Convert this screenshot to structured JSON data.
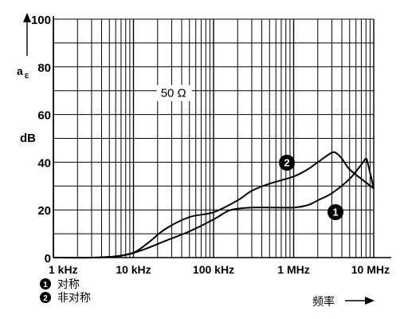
{
  "chart_data": {
    "type": "line",
    "title": "",
    "xscale": "log",
    "xlim": [
      1000,
      10000000
    ],
    "ylim": [
      0,
      100
    ],
    "grid": true,
    "ylabel_symbol": "a",
    "ylabel_sub": "E",
    "y_unit": "dB",
    "xlabel": "频率",
    "x_ticks": [
      {
        "value": 1000,
        "label": "1 kHz"
      },
      {
        "value": 10000,
        "label": "10 kHz"
      },
      {
        "value": 100000,
        "label": "100 kHz"
      },
      {
        "value": 1000000,
        "label": "1 MHz"
      },
      {
        "value": 10000000,
        "label": "10 MHz"
      }
    ],
    "y_ticks": [
      {
        "value": 0,
        "label": "0"
      },
      {
        "value": 20,
        "label": "20"
      },
      {
        "value": 40,
        "label": "40"
      },
      {
        "value": 60,
        "label": "60"
      },
      {
        "value": 80,
        "label": "80"
      },
      {
        "value": 100,
        "label": "100"
      }
    ],
    "annotation": "50 Ω",
    "legend_position": "bottom-left",
    "series": [
      {
        "name": "对称",
        "marker": "1",
        "x": [
          1000,
          3000,
          6000,
          10000,
          15000,
          25000,
          50000,
          100000,
          150000,
          200000,
          300000,
          500000,
          1000000,
          1500000,
          2000000,
          3000000,
          5000000,
          7000000,
          8000000,
          8500000,
          10000000
        ],
        "y": [
          0,
          0,
          0.5,
          2,
          4,
          7,
          11,
          16,
          19.5,
          20.5,
          21,
          21,
          21,
          22,
          24,
          27,
          33,
          39,
          41.5,
          39,
          29
        ]
      },
      {
        "name": "非对称",
        "marker": "2",
        "x": [
          1000,
          3000,
          6000,
          10000,
          15000,
          25000,
          50000,
          100000,
          200000,
          300000,
          500000,
          1000000,
          1500000,
          2000000,
          3000000,
          3500000,
          4000000,
          5000000,
          7000000,
          10000000
        ],
        "y": [
          0,
          0,
          0.5,
          2,
          6,
          12,
          17,
          19,
          24,
          28,
          31,
          34,
          37,
          40,
          44,
          43.5,
          41.5,
          37,
          33,
          29
        ]
      }
    ]
  }
}
